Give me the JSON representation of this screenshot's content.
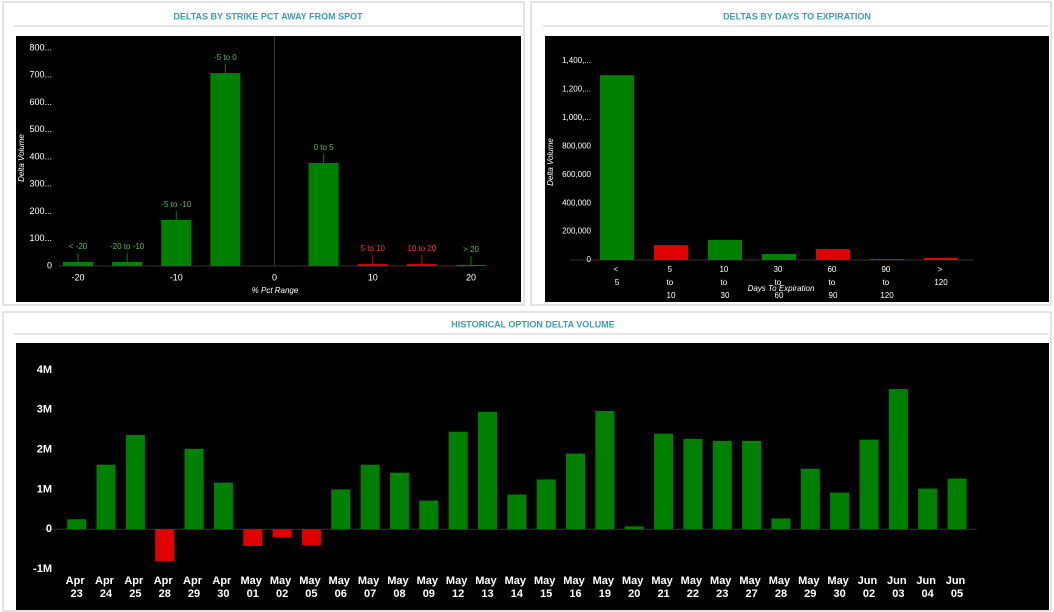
{
  "chart_data": [
    {
      "type": "bar",
      "title": "DELTAS BY STRIKE PCT AWAY FROM SPOT",
      "x_label": "% Pct Range",
      "y_label": "Delta Volume",
      "x": [
        -20,
        -15,
        -10,
        -5,
        5,
        10,
        15,
        20
      ],
      "bar_labels": [
        "< -20",
        "-20 to -10",
        "-5 to -10",
        "-5 to 0",
        "0 to 5",
        "5 to 10",
        "10 to 20",
        "> 20"
      ],
      "values": [
        15,
        15,
        169,
        708,
        378,
        7,
        7,
        4
      ],
      "colors": [
        "#008000",
        "#008000",
        "#008000",
        "#008000",
        "#008000",
        "#e00000",
        "#e00000",
        "#008000"
      ],
      "xlim": [
        -20,
        20
      ],
      "xticks": [
        -20,
        -10,
        0,
        10,
        20
      ],
      "ylim": [
        0,
        800
      ],
      "yticks": [
        0,
        {
          "value": 100,
          "label": "100..."
        },
        {
          "value": 200,
          "label": "200..."
        },
        {
          "value": 300,
          "label": "300..."
        },
        {
          "value": 400,
          "label": "400..."
        },
        {
          "value": 500,
          "label": "500..."
        },
        {
          "value": 600,
          "label": "600..."
        },
        {
          "value": 700,
          "label": "700..."
        },
        {
          "value": 800,
          "label": "800..."
        }
      ]
    },
    {
      "type": "bar",
      "title": "DELTAS BY DAYS TO EXPIRATION",
      "x_label": "Days To Expiration",
      "y_label": "Delta Volume",
      "categories": [
        "< 5",
        "5 to 10",
        "10 to 30",
        "30 to 60",
        "60 to 90",
        "90 to 120",
        "> 120"
      ],
      "values": [
        1300000,
        105000,
        141000,
        42000,
        77000,
        7000,
        14000
      ],
      "colors": [
        "#008000",
        "#e00000",
        "#008000",
        "#008000",
        "#e00000",
        "#e00000",
        "#e00000"
      ],
      "ylim": [
        0,
        1400000
      ],
      "yticks": [
        0,
        {
          "value": 200000,
          "label": "200,000"
        },
        {
          "value": 400000,
          "label": "400,000"
        },
        {
          "value": 600000,
          "label": "600,000"
        },
        {
          "value": 800000,
          "label": "800,000"
        },
        {
          "value": 1000000,
          "label": "1,000,..."
        },
        {
          "value": 1200000,
          "label": "1,200,..."
        },
        {
          "value": 1400000,
          "label": "1,400,..."
        }
      ]
    },
    {
      "type": "bar",
      "title": "HISTORICAL OPTION DELTA VOLUME",
      "categories": [
        "Apr 23",
        "Apr 24",
        "Apr 25",
        "Apr 28",
        "Apr 29",
        "Apr 30",
        "May 01",
        "May 02",
        "May 05",
        "May 06",
        "May 07",
        "May 08",
        "May 09",
        "May 12",
        "May 13",
        "May 14",
        "May 15",
        "May 16",
        "May 19",
        "May 20",
        "May 21",
        "May 22",
        "May 23",
        "May 27",
        "May 28",
        "May 29",
        "May 30",
        "Jun 02",
        "Jun 03",
        "Jun 04",
        "Jun 05"
      ],
      "values": [
        250000,
        1620000,
        2370000,
        -800000,
        2020000,
        1170000,
        -420000,
        -200000,
        -400000,
        1000000,
        1620000,
        1420000,
        720000,
        2450000,
        2950000,
        870000,
        1250000,
        1900000,
        2970000,
        70000,
        2400000,
        2270000,
        2220000,
        2220000,
        270000,
        1520000,
        920000,
        2250000,
        3520000,
        1020000,
        1270000
      ],
      "color": "#008000",
      "negative_color": "#e00000",
      "ylim": [
        -1000000,
        4000000
      ],
      "yticks": [
        {
          "value": -1000000,
          "label": "-1M"
        },
        0,
        {
          "value": 1000000,
          "label": "1M"
        },
        {
          "value": 2000000,
          "label": "2M"
        },
        {
          "value": 3000000,
          "label": "3M"
        },
        {
          "value": 4000000,
          "label": "4M"
        }
      ]
    }
  ]
}
